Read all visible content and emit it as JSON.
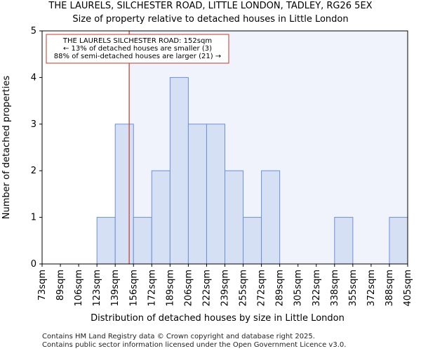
{
  "chart_data": {
    "type": "bar",
    "title": "THE LAURELS, SILCHESTER ROAD, LITTLE LONDON, TADLEY, RG26 5EX",
    "subtitle": "Size of property relative to detached houses in Little London",
    "xlabel": "Distribution of detached houses by size in Little London",
    "ylabel": "Number of detached properties",
    "ylim": [
      0,
      5
    ],
    "yticks": [
      0,
      1,
      2,
      3,
      4,
      5
    ],
    "bin_edges": [
      73,
      89,
      106,
      123,
      139,
      156,
      172,
      189,
      206,
      222,
      239,
      255,
      272,
      289,
      305,
      322,
      338,
      355,
      372,
      388,
      405
    ],
    "x_tick_labels": [
      "73sqm",
      "89sqm",
      "106sqm",
      "123sqm",
      "139sqm",
      "156sqm",
      "172sqm",
      "189sqm",
      "206sqm",
      "222sqm",
      "239sqm",
      "255sqm",
      "272sqm",
      "289sqm",
      "305sqm",
      "322sqm",
      "338sqm",
      "355sqm",
      "372sqm",
      "388sqm",
      "405sqm"
    ],
    "values": [
      0,
      0,
      0,
      1,
      3,
      1,
      2,
      4,
      3,
      3,
      2,
      1,
      2,
      0,
      0,
      0,
      1,
      0,
      0,
      1
    ],
    "property_size": 152,
    "annotation": {
      "line1": "THE LAURELS SILCHESTER ROAD: 152sqm",
      "line2": "← 13% of detached houses are smaller (3)",
      "line3": "88% of semi-detached houses are larger (21) →"
    },
    "colors": {
      "bar_fill": "#d6e0f5",
      "bar_edge": "#6e8fd0",
      "highlight_bg": "#f0f3fc",
      "marker": "#c0392b",
      "annotation_border": "#c0392b"
    }
  },
  "footer": {
    "line1": "Contains HM Land Registry data © Crown copyright and database right 2025.",
    "line2": "Contains public sector information licensed under the Open Government Licence v3.0."
  }
}
